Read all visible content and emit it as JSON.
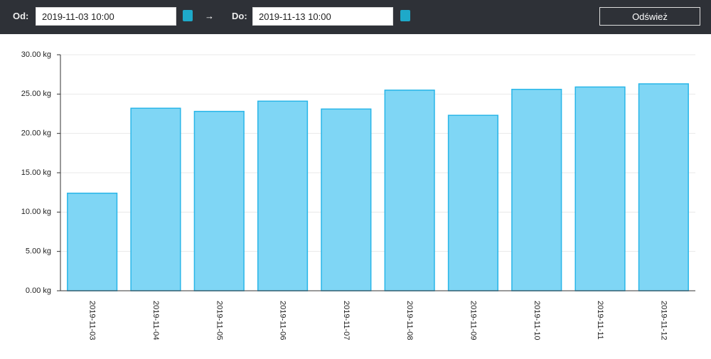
{
  "toolbar": {
    "from_label": "Od:",
    "from_value": "2019-11-03 10:00",
    "arrow": "→",
    "to_label": "Do:",
    "to_value": "2019-11-13 10:00",
    "refresh": "Odśwież"
  },
  "chart_data": {
    "type": "bar",
    "categories": [
      "2019-11-03",
      "2019-11-04",
      "2019-11-05",
      "2019-11-06",
      "2019-11-07",
      "2019-11-08",
      "2019-11-09",
      "2019-11-10",
      "2019-11-11",
      "2019-11-12"
    ],
    "values": [
      12.4,
      23.2,
      22.8,
      24.1,
      23.1,
      25.5,
      22.3,
      25.6,
      25.9,
      26.3
    ],
    "color": "#7fd6f5",
    "stroke": "#29b6e8",
    "ylim": [
      0,
      30
    ],
    "yticks": [
      {
        "value": 0,
        "label": "0.00 kg"
      },
      {
        "value": 5,
        "label": "5.00 kg"
      },
      {
        "value": 10,
        "label": "10.00 kg"
      },
      {
        "value": 15,
        "label": "15.00 kg"
      },
      {
        "value": 20,
        "label": "20.00 kg"
      },
      {
        "value": 25,
        "label": "25.00 kg"
      },
      {
        "value": 30,
        "label": "30.00 kg"
      }
    ],
    "grid": true
  }
}
